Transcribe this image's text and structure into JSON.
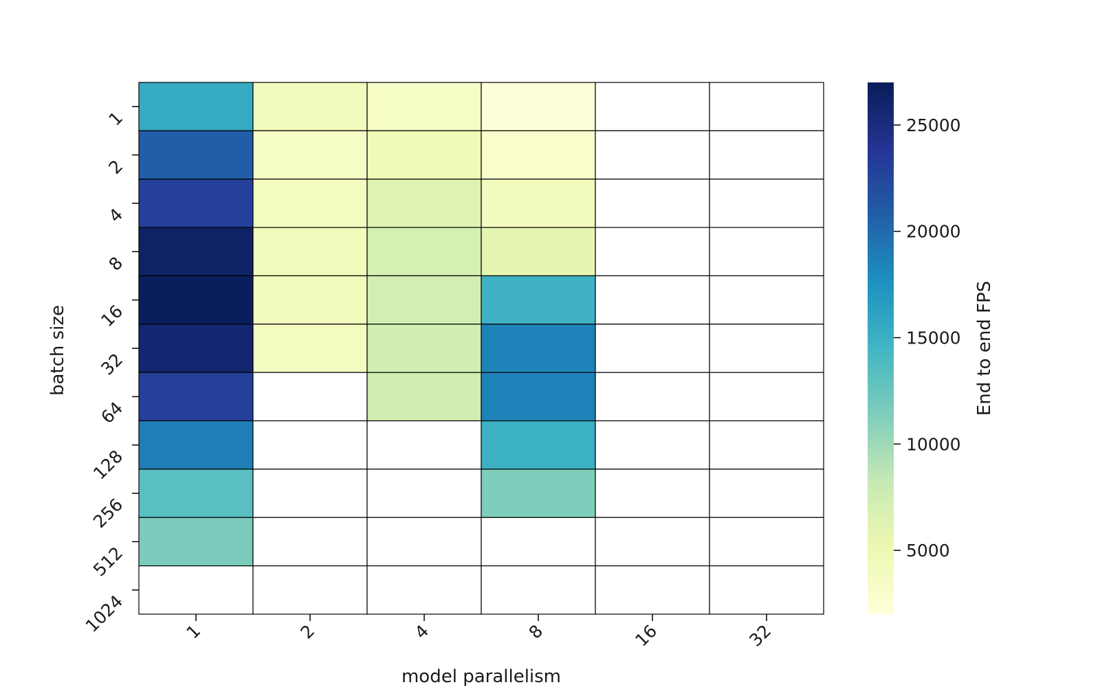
{
  "chart_data": {
    "type": "heatmap",
    "xlabel": "model parallelism",
    "ylabel": "batch size",
    "x_categories": [
      "1",
      "2",
      "4",
      "8",
      "16",
      "32"
    ],
    "y_categories": [
      "1",
      "2",
      "4",
      "8",
      "16",
      "32",
      "64",
      "128",
      "256",
      "512",
      "1024"
    ],
    "values": [
      [
        15500,
        4200,
        3500,
        2100,
        null,
        null
      ],
      [
        20800,
        3500,
        4600,
        3000,
        null,
        null
      ],
      [
        23000,
        4000,
        6300,
        4200,
        null,
        null
      ],
      [
        26300,
        4300,
        7000,
        5700,
        null,
        null
      ],
      [
        26800,
        4300,
        7300,
        14800,
        null,
        null
      ],
      [
        25800,
        4000,
        7400,
        18500,
        null,
        null
      ],
      [
        23000,
        null,
        7500,
        18500,
        null,
        null
      ],
      [
        18800,
        null,
        null,
        14900,
        null,
        null
      ],
      [
        13300,
        null,
        null,
        11400,
        null,
        null
      ],
      [
        11600,
        null,
        null,
        null,
        null,
        null
      ],
      [
        null,
        null,
        null,
        null,
        null,
        null
      ]
    ],
    "colorbar": {
      "label": "End to end FPS",
      "range": [
        2000,
        27000
      ],
      "ticks": [
        5000,
        10000,
        15000,
        20000,
        25000
      ],
      "colormap": "YlGnBu",
      "stops": [
        "#ffffd9",
        "#edf8b1",
        "#c7e9b4",
        "#7fcdbb",
        "#41b6c4",
        "#1d91c0",
        "#225ea8",
        "#253494",
        "#081d58"
      ]
    },
    "missing_color": "#ffffff",
    "grid_line_color": "#000000"
  }
}
